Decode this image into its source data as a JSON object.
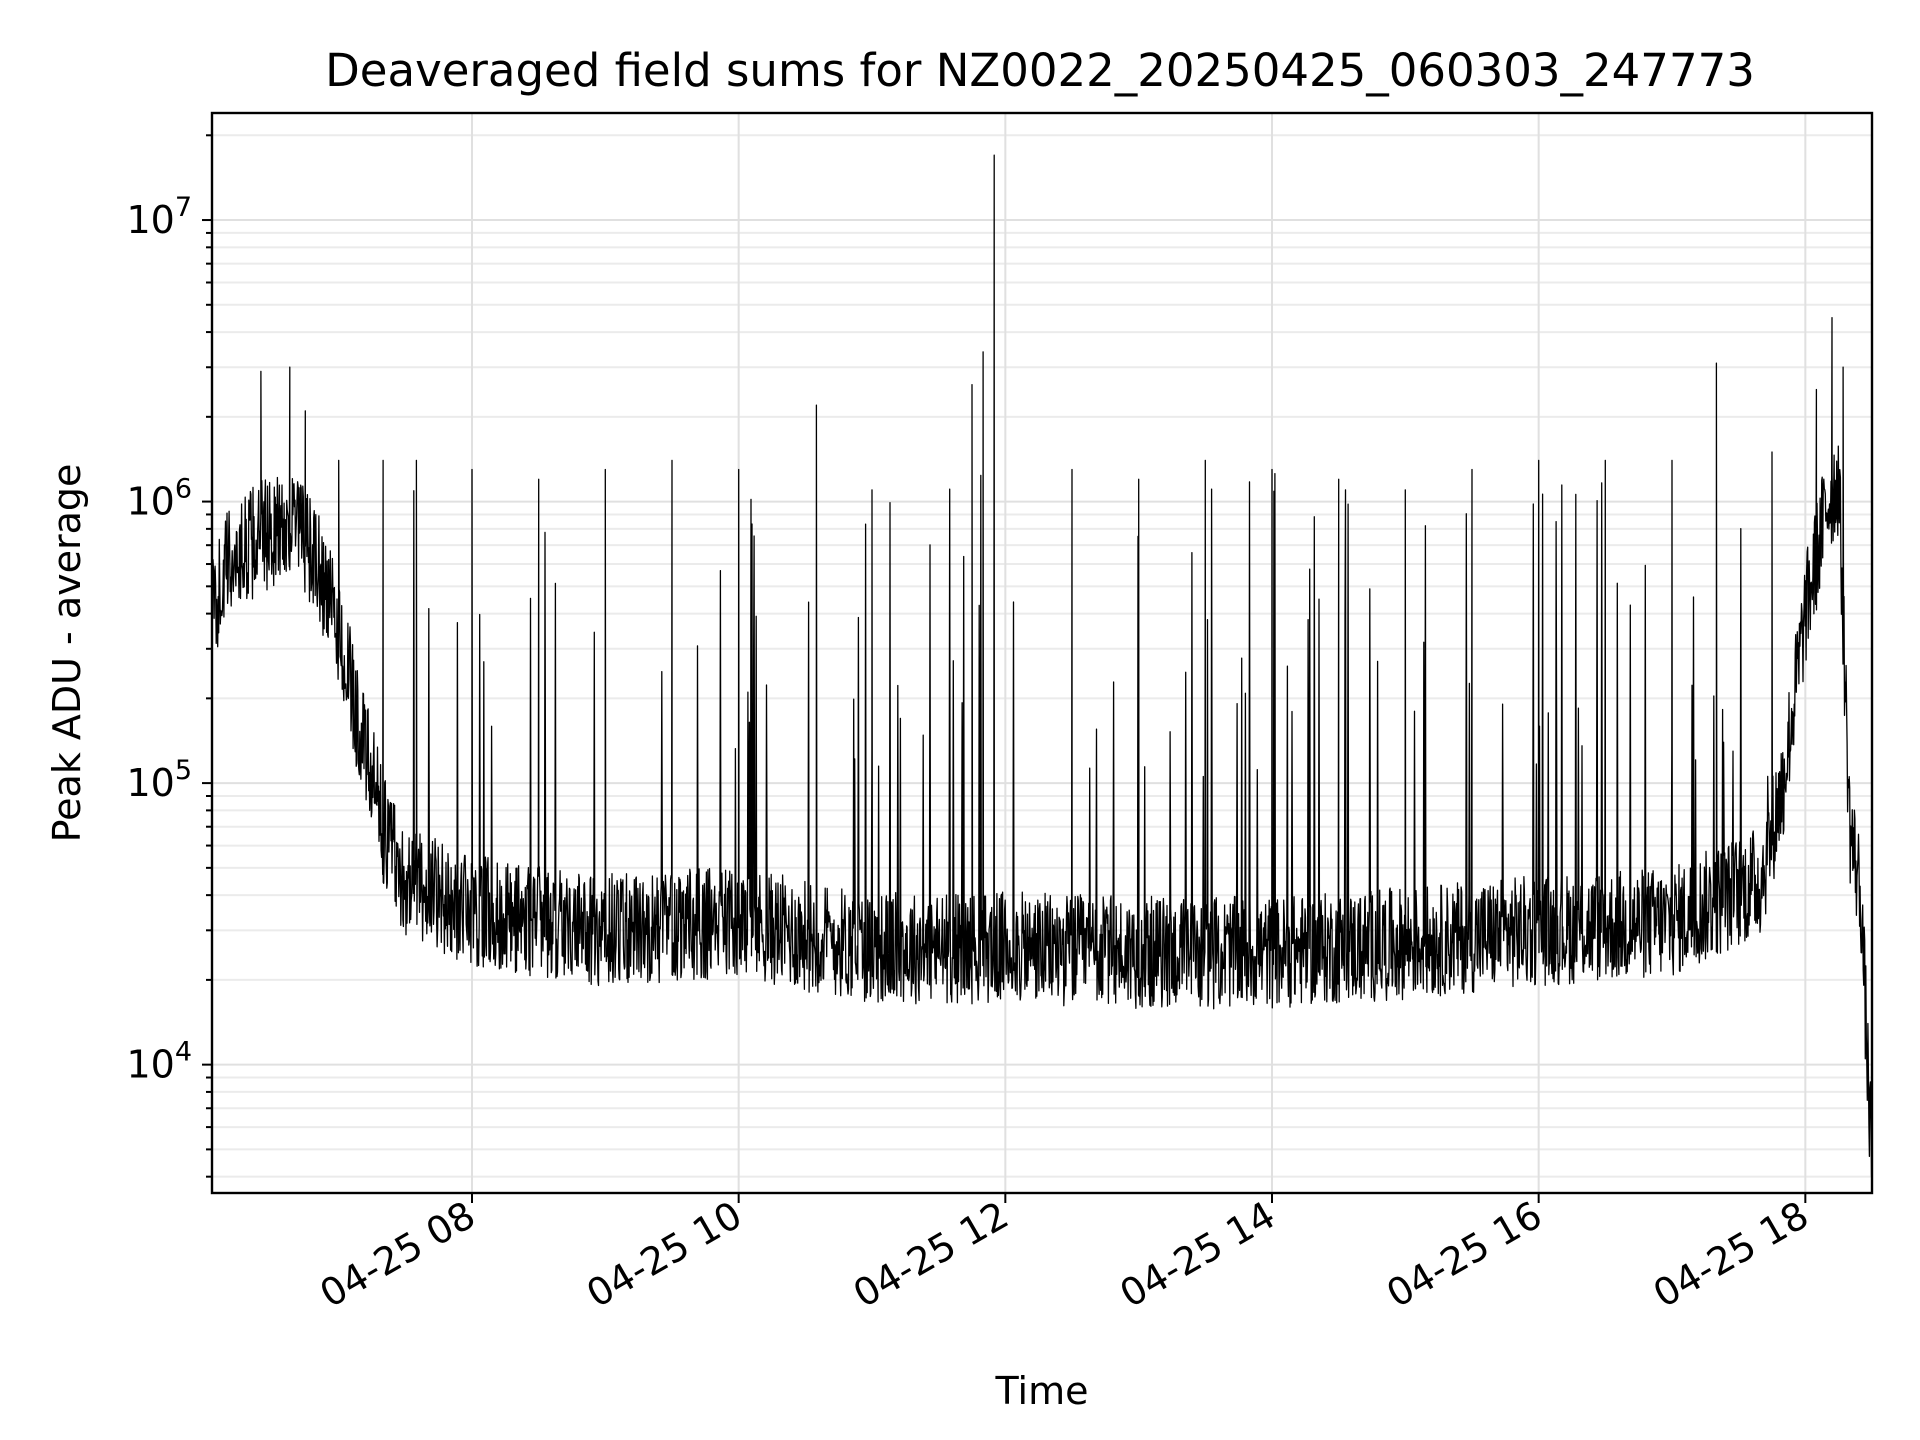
{
  "chart_data": {
    "type": "line",
    "title": "Deaveraged field sums for NZ0022_20250425_060303_247773",
    "xlabel": "Time",
    "ylabel": "Peak ADU - average",
    "x_scale": "time",
    "y_scale": "log",
    "xlim": [
      "2025-04-25T06:03",
      "2025-04-25T18:30"
    ],
    "ylim": [
      3500,
      24000000
    ],
    "x_ticks": [
      {
        "value": "2025-04-25T08:00",
        "label": "04-25 08"
      },
      {
        "value": "2025-04-25T10:00",
        "label": "04-25 10"
      },
      {
        "value": "2025-04-25T12:00",
        "label": "04-25 12"
      },
      {
        "value": "2025-04-25T14:00",
        "label": "04-25 14"
      },
      {
        "value": "2025-04-25T16:00",
        "label": "04-25 16"
      },
      {
        "value": "2025-04-25T18:00",
        "label": "04-25 18"
      }
    ],
    "y_ticks": [
      {
        "value": 10000,
        "base": "10",
        "exponent": "4"
      },
      {
        "value": 100000,
        "base": "10",
        "exponent": "5"
      },
      {
        "value": 1000000,
        "base": "10",
        "exponent": "6"
      },
      {
        "value": 10000000,
        "base": "10",
        "exponent": "7"
      }
    ],
    "grid": true,
    "series": [
      {
        "color": "#000000",
        "baseline": [
          [
            "2025-04-25T06:03",
            400000
          ],
          [
            "2025-04-25T06:10",
            600000
          ],
          [
            "2025-04-25T06:25",
            750000
          ],
          [
            "2025-04-25T06:40",
            850000
          ],
          [
            "2025-04-25T06:50",
            600000
          ],
          [
            "2025-04-25T07:00",
            350000
          ],
          [
            "2025-04-25T07:10",
            150000
          ],
          [
            "2025-04-25T07:20",
            70000
          ],
          [
            "2025-04-25T07:30",
            45000
          ],
          [
            "2025-04-25T08:00",
            35000
          ],
          [
            "2025-04-25T09:00",
            30000
          ],
          [
            "2025-04-25T10:00",
            32000
          ],
          [
            "2025-04-25T11:00",
            26000
          ],
          [
            "2025-04-25T12:00",
            26000
          ],
          [
            "2025-04-25T13:00",
            25000
          ],
          [
            "2025-04-25T14:00",
            25000
          ],
          [
            "2025-04-25T15:00",
            27000
          ],
          [
            "2025-04-25T16:00",
            30000
          ],
          [
            "2025-04-25T17:00",
            32000
          ],
          [
            "2025-04-25T17:40",
            45000
          ],
          [
            "2025-04-25T17:50",
            100000
          ],
          [
            "2025-04-25T18:00",
            400000
          ],
          [
            "2025-04-25T18:10",
            1000000
          ],
          [
            "2025-04-25T18:15",
            1200000
          ],
          [
            "2025-04-25T18:20",
            70000
          ],
          [
            "2025-04-25T18:25",
            40000
          ],
          [
            "2025-04-25T18:30",
            4000
          ]
        ],
        "spikes": [
          [
            "2025-04-25T06:25",
            2900000
          ],
          [
            "2025-04-25T06:38",
            3000000
          ],
          [
            "2025-04-25T06:45",
            2100000
          ],
          [
            "2025-04-25T07:00",
            1400000
          ],
          [
            "2025-04-25T07:20",
            1400000
          ],
          [
            "2025-04-25T07:35",
            1400000
          ],
          [
            "2025-04-25T08:00",
            1300000
          ],
          [
            "2025-04-25T08:30",
            1200000
          ],
          [
            "2025-04-25T09:00",
            1300000
          ],
          [
            "2025-04-25T09:30",
            1400000
          ],
          [
            "2025-04-25T10:00",
            1300000
          ],
          [
            "2025-04-25T10:35",
            2200000
          ],
          [
            "2025-04-25T11:00",
            1100000
          ],
          [
            "2025-04-25T11:45",
            2600000
          ],
          [
            "2025-04-25T11:50",
            3400000
          ],
          [
            "2025-04-25T11:55",
            17000000
          ],
          [
            "2025-04-25T12:30",
            1300000
          ],
          [
            "2025-04-25T13:00",
            1200000
          ],
          [
            "2025-04-25T13:30",
            1400000
          ],
          [
            "2025-04-25T14:00",
            1300000
          ],
          [
            "2025-04-25T14:30",
            1200000
          ],
          [
            "2025-04-25T15:00",
            1100000
          ],
          [
            "2025-04-25T15:30",
            1300000
          ],
          [
            "2025-04-25T16:00",
            1400000
          ],
          [
            "2025-04-25T16:30",
            1400000
          ],
          [
            "2025-04-25T17:00",
            1400000
          ],
          [
            "2025-04-25T17:20",
            3100000
          ],
          [
            "2025-04-25T17:45",
            1500000
          ],
          [
            "2025-04-25T18:05",
            2500000
          ],
          [
            "2025-04-25T18:12",
            4500000
          ],
          [
            "2025-04-25T18:17",
            3000000
          ]
        ]
      }
    ]
  }
}
